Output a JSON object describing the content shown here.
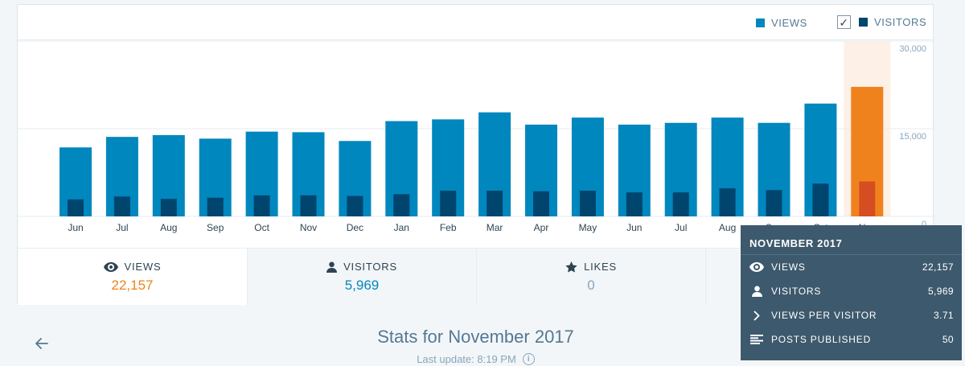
{
  "chart_data": {
    "type": "bar",
    "categories": [
      "Jun",
      "Jul",
      "Aug",
      "Sep",
      "Oct",
      "Nov",
      "Dec",
      "Jan",
      "Feb",
      "Mar",
      "Apr",
      "May",
      "Jun",
      "Jul",
      "Aug",
      "Sep",
      "Oct",
      "Nov"
    ],
    "series": [
      {
        "name": "VIEWS",
        "values": [
          11800,
          13600,
          13900,
          13300,
          14500,
          14400,
          12900,
          16300,
          16600,
          17800,
          15700,
          16900,
          15700,
          16000,
          16900,
          16000,
          19300,
          22157
        ]
      },
      {
        "name": "VISITORS",
        "values": [
          2900,
          3400,
          3000,
          3200,
          3600,
          3600,
          3500,
          3800,
          4400,
          4400,
          4300,
          4400,
          4100,
          4100,
          4800,
          4500,
          5600,
          5969
        ]
      }
    ],
    "ylim": [
      0,
      30000
    ],
    "yticks": [
      "0",
      "15,000",
      "30,000"
    ],
    "highlight_index": 17,
    "colors": {
      "views": "#0087be",
      "visitors": "#00456e",
      "views_highlight": "#f0821e",
      "visitors_highlight": "#d54e21",
      "highlight_band": "#fdf0e6"
    }
  },
  "legend": {
    "views": "VIEWS",
    "visitors": "VISITORS",
    "visitors_checked": true
  },
  "tabs": [
    {
      "label": "VIEWS",
      "value": "22,157",
      "icon": "eye-icon"
    },
    {
      "label": "VISITORS",
      "value": "5,969",
      "icon": "person-icon"
    },
    {
      "label": "LIKES",
      "value": "0",
      "icon": "star-icon"
    }
  ],
  "tooltip": {
    "title": "NOVEMBER 2017",
    "rows": [
      {
        "label": "VIEWS",
        "value": "22,157",
        "icon": "eye-icon"
      },
      {
        "label": "VISITORS",
        "value": "5,969",
        "icon": "person-icon"
      },
      {
        "label": "VIEWS PER VISITOR",
        "value": "3.71",
        "icon": "chevron-right-icon"
      },
      {
        "label": "POSTS PUBLISHED",
        "value": "50",
        "icon": "posts-icon"
      }
    ]
  },
  "footer": {
    "title": "Stats for November 2017",
    "last_update": "Last update: 8:19 PM"
  }
}
